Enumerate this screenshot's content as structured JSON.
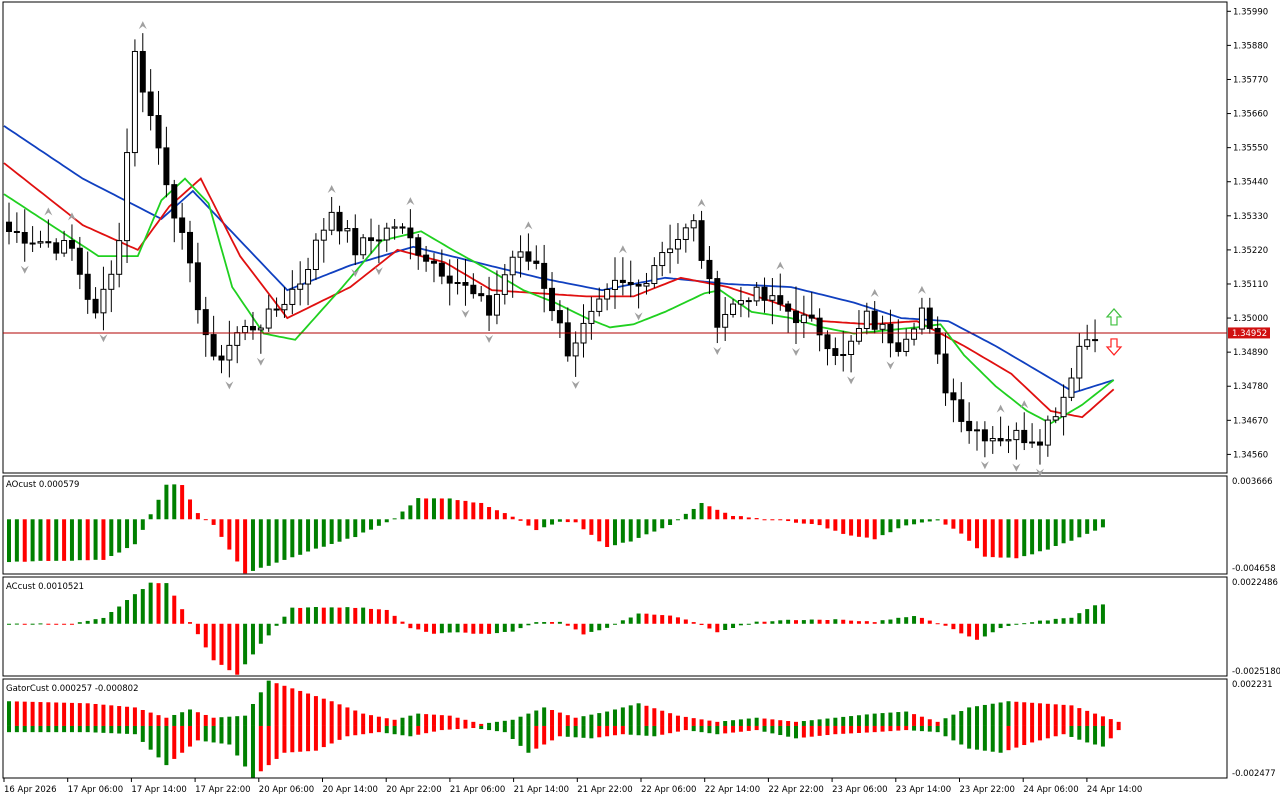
{
  "colors": {
    "background": "#ffffff",
    "grid": "#000000",
    "up_bar": "#008000",
    "down_bar": "#ff0000",
    "jaw": "#1040c0",
    "teeth": "#e01010",
    "lips": "#20d020",
    "price_line": "#b00000",
    "price_label_bg": "#d01010",
    "fractal": "#a0a0a0",
    "arrow_up": "#40c040",
    "arrow_down": "#ff2020"
  },
  "chart_data": [
    {
      "type": "candlestick",
      "panel": "main",
      "ylim": [
        1.345,
        1.3602
      ],
      "y_ticks": [
        "1.35990",
        "1.35880",
        "1.35770",
        "1.35660",
        "1.35550",
        "1.35440",
        "1.35330",
        "1.35220",
        "1.35110",
        "1.35000",
        "1.34890",
        "1.34780",
        "1.34670",
        "1.34560"
      ],
      "current_price": "1.34952",
      "x_ticks": [
        "16 Apr 2026",
        "17 Apr 06:00",
        "17 Apr 14:00",
        "17 Apr 22:00",
        "20 Apr 06:00",
        "20 Apr 14:00",
        "20 Apr 22:00",
        "21 Apr 06:00",
        "21 Apr 14:00",
        "21 Apr 22:00",
        "22 Apr 06:00",
        "22 Apr 14:00",
        "22 Apr 22:00",
        "23 Apr 06:00",
        "23 Apr 14:00",
        "23 Apr 22:00",
        "24 Apr 06:00",
        "24 Apr 14:00"
      ],
      "close_keypoints": [
        [
          0,
          1.3528
        ],
        [
          8,
          1.3522
        ],
        [
          11,
          1.35
        ],
        [
          14,
          1.3525
        ],
        [
          16,
          1.3585
        ],
        [
          19,
          1.3555
        ],
        [
          23,
          1.3515
        ],
        [
          26,
          1.3485
        ],
        [
          29,
          1.3495
        ],
        [
          33,
          1.35
        ],
        [
          37,
          1.3512
        ],
        [
          41,
          1.3535
        ],
        [
          44,
          1.3522
        ],
        [
          49,
          1.353
        ],
        [
          53,
          1.352
        ],
        [
          57,
          1.3512
        ],
        [
          61,
          1.3502
        ],
        [
          64,
          1.352
        ],
        [
          67,
          1.3518
        ],
        [
          71,
          1.349
        ],
        [
          74,
          1.35
        ],
        [
          77,
          1.351
        ],
        [
          80,
          1.351
        ],
        [
          83,
          1.3522
        ],
        [
          87,
          1.353
        ],
        [
          90,
          1.35
        ],
        [
          94,
          1.3508
        ],
        [
          98,
          1.3504
        ],
        [
          103,
          1.3496
        ],
        [
          106,
          1.3487
        ],
        [
          109,
          1.35
        ],
        [
          113,
          1.3492
        ],
        [
          116,
          1.3503
        ],
        [
          119,
          1.3478
        ],
        [
          122,
          1.3465
        ],
        [
          125,
          1.3462
        ],
        [
          128,
          1.3462
        ],
        [
          131,
          1.3462
        ],
        [
          134,
          1.3475
        ],
        [
          136,
          1.3491
        ],
        [
          138,
          1.3496
        ]
      ],
      "alligator_jaw_keypoints": [
        [
          0,
          1.3562
        ],
        [
          10,
          1.3545
        ],
        [
          20,
          1.3532
        ],
        [
          24,
          1.3541
        ],
        [
          30,
          1.3525
        ],
        [
          36,
          1.3509
        ],
        [
          44,
          1.3517
        ],
        [
          52,
          1.3523
        ],
        [
          60,
          1.3518
        ],
        [
          68,
          1.3513
        ],
        [
          76,
          1.3509
        ],
        [
          84,
          1.3513
        ],
        [
          92,
          1.3511
        ],
        [
          100,
          1.351
        ],
        [
          108,
          1.3505
        ],
        [
          114,
          1.35
        ],
        [
          120,
          1.3499
        ],
        [
          126,
          1.3491
        ],
        [
          132,
          1.3482
        ],
        [
          136,
          1.3476
        ],
        [
          141,
          1.348
        ]
      ],
      "alligator_teeth_keypoints": [
        [
          0,
          1.355
        ],
        [
          10,
          1.353
        ],
        [
          17,
          1.3522
        ],
        [
          21,
          1.3536
        ],
        [
          25,
          1.3545
        ],
        [
          30,
          1.352
        ],
        [
          36,
          1.35
        ],
        [
          44,
          1.351
        ],
        [
          50,
          1.3522
        ],
        [
          56,
          1.3518
        ],
        [
          62,
          1.3509
        ],
        [
          68,
          1.3508
        ],
        [
          74,
          1.3507
        ],
        [
          80,
          1.3507
        ],
        [
          86,
          1.3513
        ],
        [
          92,
          1.351
        ],
        [
          98,
          1.3505
        ],
        [
          104,
          1.3499
        ],
        [
          110,
          1.3498
        ],
        [
          116,
          1.3499
        ],
        [
          122,
          1.3491
        ],
        [
          128,
          1.3482
        ],
        [
          133,
          1.347
        ],
        [
          137,
          1.3468
        ],
        [
          141,
          1.3477
        ]
      ],
      "alligator_lips_keypoints": [
        [
          0,
          1.354
        ],
        [
          6,
          1.353
        ],
        [
          12,
          1.352
        ],
        [
          17,
          1.352
        ],
        [
          20,
          1.3538
        ],
        [
          23,
          1.3545
        ],
        [
          26,
          1.3537
        ],
        [
          29,
          1.351
        ],
        [
          33,
          1.3495
        ],
        [
          37,
          1.3493
        ],
        [
          43,
          1.351
        ],
        [
          48,
          1.3525
        ],
        [
          53,
          1.3528
        ],
        [
          57,
          1.3522
        ],
        [
          62,
          1.3515
        ],
        [
          66,
          1.3509
        ],
        [
          70,
          1.3505
        ],
        [
          74,
          1.35
        ],
        [
          77,
          1.3497
        ],
        [
          80,
          1.3498
        ],
        [
          84,
          1.3502
        ],
        [
          89,
          1.3508
        ],
        [
          91,
          1.3509
        ],
        [
          95,
          1.3502
        ],
        [
          100,
          1.35
        ],
        [
          104,
          1.3497
        ],
        [
          108,
          1.3495
        ],
        [
          112,
          1.3496
        ],
        [
          116,
          1.3497
        ],
        [
          119,
          1.3498
        ],
        [
          122,
          1.3488
        ],
        [
          126,
          1.3478
        ],
        [
          130,
          1.347
        ],
        [
          133,
          1.3466
        ],
        [
          137,
          1.3472
        ],
        [
          141,
          1.348
        ]
      ]
    },
    {
      "type": "bar",
      "panel": "AO",
      "title": "AOcust 0.000579",
      "y_max_label": "0.003666",
      "y_min_label": "-0.004658",
      "ylim": [
        -0.004658,
        0.003666
      ],
      "keypoints": [
        [
          0,
          -0.0037
        ],
        [
          12,
          -0.0035
        ],
        [
          16,
          -0.0022
        ],
        [
          20,
          0.003
        ],
        [
          22,
          0.003
        ],
        [
          24,
          0.0005
        ],
        [
          26,
          -0.0005
        ],
        [
          30,
          -0.0047
        ],
        [
          33,
          -0.004
        ],
        [
          38,
          -0.0028
        ],
        [
          44,
          -0.0015
        ],
        [
          49,
          0.0001
        ],
        [
          52,
          0.0018
        ],
        [
          56,
          0.0018
        ],
        [
          60,
          0.0014
        ],
        [
          64,
          0.0002
        ],
        [
          67,
          -0.0009
        ],
        [
          70,
          -0.0002
        ],
        [
          72,
          -0.0003
        ],
        [
          76,
          -0.0024
        ],
        [
          79,
          -0.0019
        ],
        [
          84,
          -0.0005
        ],
        [
          88,
          0.0014
        ],
        [
          92,
          0.0003
        ],
        [
          98,
          -0.0001
        ],
        [
          103,
          -0.0005
        ],
        [
          106,
          -0.0013
        ],
        [
          110,
          -0.0017
        ],
        [
          114,
          -0.0005
        ],
        [
          118,
          -0.0001
        ],
        [
          121,
          -0.0012
        ],
        [
          124,
          -0.0032
        ],
        [
          128,
          -0.0034
        ],
        [
          132,
          -0.0026
        ],
        [
          136,
          -0.0016
        ],
        [
          140,
          -0.0004
        ],
        [
          141,
          0.0007
        ]
      ]
    },
    {
      "type": "bar",
      "panel": "AC",
      "title": "ACcust 0.0010521",
      "y_max_label": "0.0022486",
      "y_min_label": "-0.0025180",
      "ylim": [
        -0.002518,
        0.0022486
      ],
      "keypoints": [
        [
          0,
          0.0
        ],
        [
          8,
          0.0
        ],
        [
          12,
          0.0003
        ],
        [
          18,
          0.002
        ],
        [
          20,
          0.002
        ],
        [
          23,
          0.0001
        ],
        [
          26,
          -0.0018
        ],
        [
          29,
          -0.0025
        ],
        [
          32,
          -0.001
        ],
        [
          36,
          0.0008
        ],
        [
          40,
          0.0008
        ],
        [
          44,
          0.0008
        ],
        [
          48,
          0.0007
        ],
        [
          51,
          -0.0002
        ],
        [
          54,
          -0.0005
        ],
        [
          57,
          -0.0004
        ],
        [
          60,
          -0.0005
        ],
        [
          64,
          -0.0004
        ],
        [
          67,
          0.0001
        ],
        [
          70,
          0.0001
        ],
        [
          73,
          -0.0005
        ],
        [
          76,
          -0.0002
        ],
        [
          80,
          0.0005
        ],
        [
          84,
          0.0004
        ],
        [
          87,
          0.0001
        ],
        [
          90,
          -0.0004
        ],
        [
          95,
          0.0001
        ],
        [
          100,
          0.0002
        ],
        [
          105,
          0.0002
        ],
        [
          110,
          0.0001
        ],
        [
          115,
          0.0004
        ],
        [
          119,
          -0.0001
        ],
        [
          123,
          -0.0008
        ],
        [
          126,
          -0.0002
        ],
        [
          130,
          0.0001
        ],
        [
          135,
          0.0003
        ],
        [
          138,
          0.0009
        ],
        [
          140,
          0.001
        ]
      ]
    },
    {
      "type": "bar",
      "panel": "Gator",
      "title": "GatorCust 0.000257 -0.000802",
      "y_max_label": "0.002231",
      "y_min_label": "-0.002477",
      "ylim": [
        -0.002477,
        0.002231
      ],
      "upper_keypoints": [
        [
          0,
          0.0012
        ],
        [
          10,
          0.0011
        ],
        [
          16,
          0.0009
        ],
        [
          20,
          0.0004
        ],
        [
          23,
          0.0008
        ],
        [
          26,
          0.0004
        ],
        [
          30,
          0.0005
        ],
        [
          33,
          0.0022
        ],
        [
          37,
          0.0017
        ],
        [
          41,
          0.0012
        ],
        [
          45,
          0.0006
        ],
        [
          49,
          0.0003
        ],
        [
          52,
          0.0006
        ],
        [
          56,
          0.0005
        ],
        [
          60,
          0.0001
        ],
        [
          64,
          0.0003
        ],
        [
          68,
          0.0009
        ],
        [
          72,
          0.0004
        ],
        [
          76,
          0.0007
        ],
        [
          80,
          0.0011
        ],
        [
          85,
          0.0005
        ],
        [
          90,
          0.0002
        ],
        [
          95,
          0.0004
        ],
        [
          100,
          0.0002
        ],
        [
          105,
          0.0004
        ],
        [
          110,
          0.0006
        ],
        [
          114,
          0.0007
        ],
        [
          118,
          0.0002
        ],
        [
          122,
          0.0009
        ],
        [
          127,
          0.0012
        ],
        [
          131,
          0.0011
        ],
        [
          135,
          0.001
        ],
        [
          138,
          0.0006
        ],
        [
          141,
          0.0002
        ]
      ],
      "lower_keypoints": [
        [
          0,
          -0.0003
        ],
        [
          10,
          -0.0003
        ],
        [
          16,
          -0.0004
        ],
        [
          20,
          -0.0019
        ],
        [
          24,
          -0.0007
        ],
        [
          28,
          -0.0009
        ],
        [
          31,
          -0.0025
        ],
        [
          35,
          -0.0013
        ],
        [
          39,
          -0.0012
        ],
        [
          43,
          -0.0005
        ],
        [
          47,
          -0.0003
        ],
        [
          51,
          -0.0005
        ],
        [
          55,
          -0.0002
        ],
        [
          59,
          -0.0001
        ],
        [
          63,
          -0.0003
        ],
        [
          66,
          -0.0013
        ],
        [
          70,
          -0.0005
        ],
        [
          74,
          -0.0006
        ],
        [
          78,
          -0.0004
        ],
        [
          82,
          -0.0005
        ],
        [
          86,
          -0.0002
        ],
        [
          90,
          -0.0004
        ],
        [
          95,
          -0.0002
        ],
        [
          100,
          -0.0006
        ],
        [
          105,
          -0.0004
        ],
        [
          110,
          -0.0003
        ],
        [
          114,
          -0.0002
        ],
        [
          118,
          -0.0003
        ],
        [
          122,
          -0.0011
        ],
        [
          126,
          -0.0013
        ],
        [
          130,
          -0.0008
        ],
        [
          134,
          -0.0004
        ],
        [
          137,
          -0.0008
        ],
        [
          139,
          -0.001
        ],
        [
          141,
          -0.0002
        ]
      ]
    }
  ]
}
